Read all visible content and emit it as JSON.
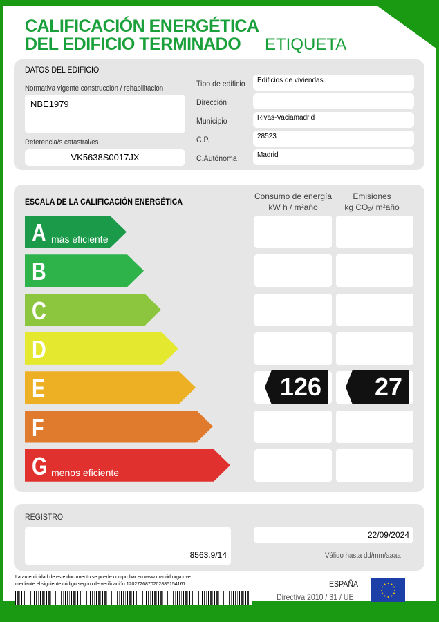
{
  "header": {
    "title_line1": "CALIFICACIÓN ENERGÉTICA",
    "title_line2": "DEL EDIFICIO TERMINADO",
    "label": "ETIQUETA"
  },
  "datos": {
    "heading": "DATOS DEL EDIFICIO",
    "normativa_label": "Normativa vigente construcción / rehabilitación",
    "normativa": "NBE1979",
    "referencia_label": "Referencia/s catastral/es",
    "referencia": "VK5638S0017JX",
    "fields": [
      {
        "label": "Tipo de edificio",
        "value": "Edificios de viviendas"
      },
      {
        "label": "Dirección",
        "value": ""
      },
      {
        "label": "Municipio",
        "value": "Rivas-Vaciamadrid"
      },
      {
        "label": "C.P.",
        "value": "28523"
      },
      {
        "label": "C.Autónoma",
        "value": "Madrid"
      }
    ]
  },
  "escala": {
    "heading": "ESCALA DE LA CALIFICACIÓN ENERGÉTICA",
    "col1_line1": "Consumo de energía",
    "col1_line2": "kW h / m²año",
    "col2_line1": "Emisiones",
    "col2_line2": "kg CO₂/ m²año",
    "classes": [
      {
        "letter": "A",
        "sub": "más eficiente",
        "color": "#1b9a4a"
      },
      {
        "letter": "B",
        "sub": "",
        "color": "#2db34a"
      },
      {
        "letter": "C",
        "sub": "",
        "color": "#8cc63f"
      },
      {
        "letter": "D",
        "sub": "",
        "color": "#e4e82e"
      },
      {
        "letter": "E",
        "sub": "",
        "color": "#edb025"
      },
      {
        "letter": "F",
        "sub": "",
        "color": "#e07a2d"
      },
      {
        "letter": "G",
        "sub": "menos eficiente",
        "color": "#e0312f"
      }
    ],
    "rating_class": "E",
    "consumo": "126",
    "emisiones": "27"
  },
  "registro": {
    "heading": "REGISTRO",
    "numero": "8563.9/14",
    "fecha": "22/09/2024",
    "valido": "Válido hasta dd/mm/aaaa"
  },
  "footer": {
    "line1": "La autenticidad de este documento se puede comprobar en www.madrid.org/cove",
    "line2": "mediante el siguiente código seguro de verificación:1202726870202885154167",
    "country": "ESPAÑA",
    "directiva": "Directiva 2010 / 31 / UE"
  }
}
